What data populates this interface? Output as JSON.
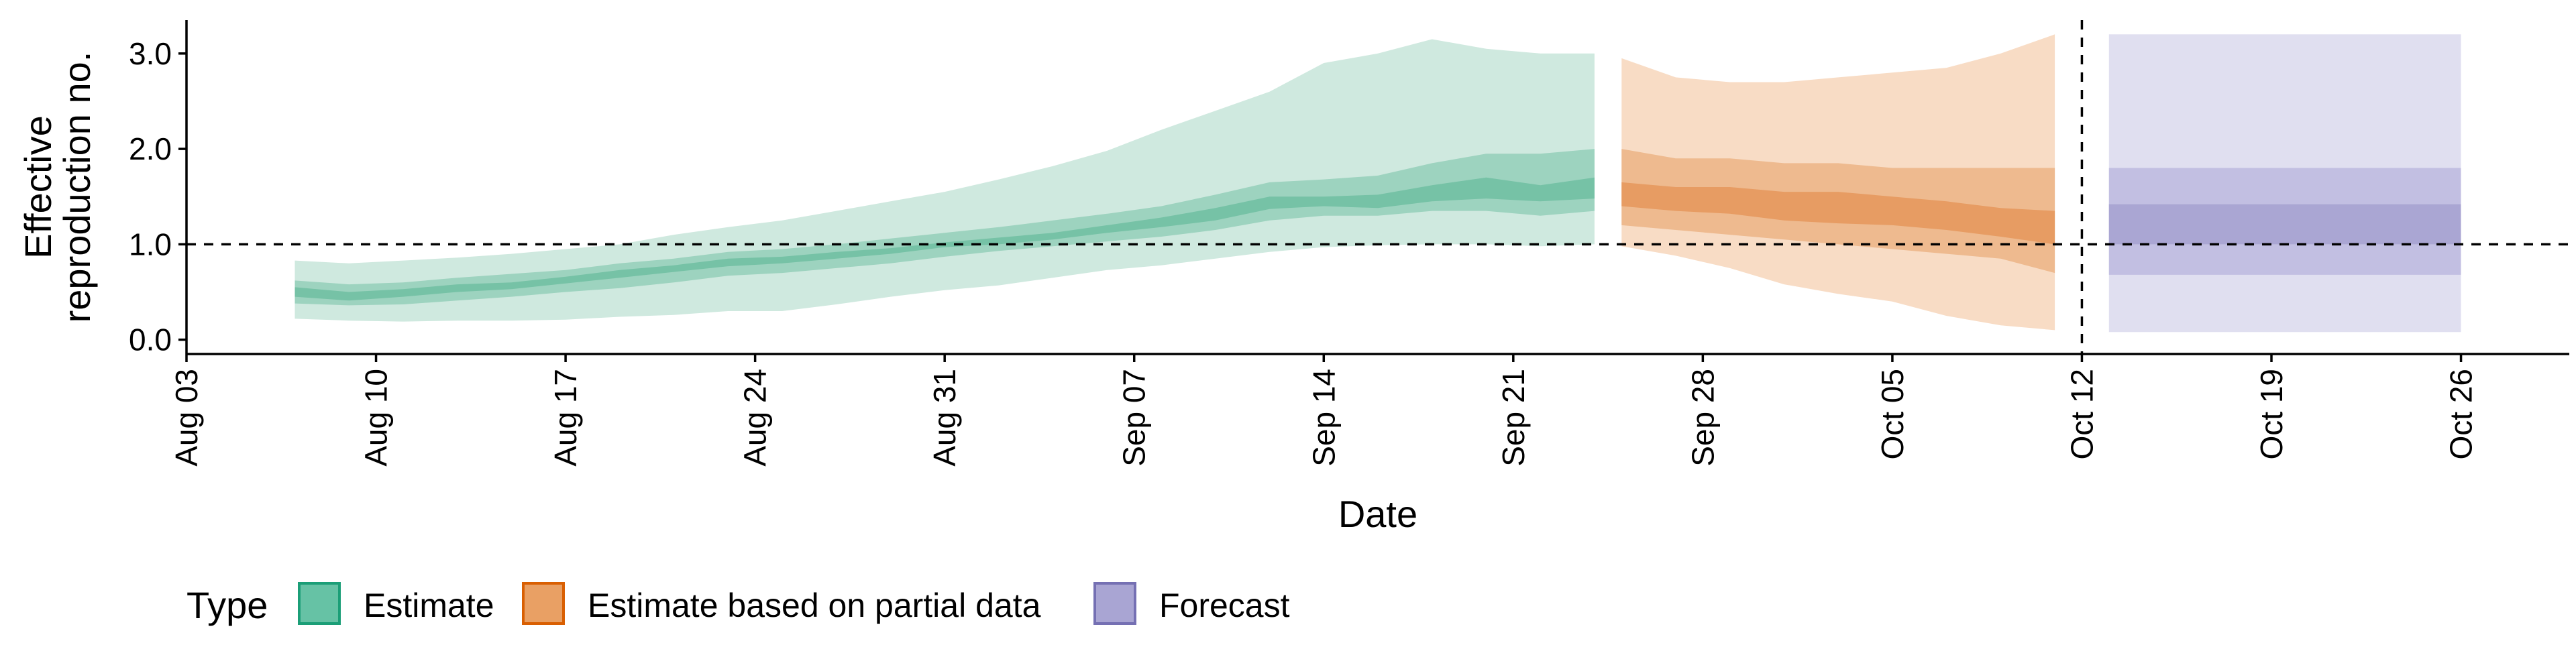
{
  "chart_data": {
    "type": "area",
    "title": "",
    "xlabel": "Date",
    "ylabel_lines": [
      "Effective",
      "reproduction no."
    ],
    "xlim": [
      "2020-08-03",
      "2020-10-30"
    ],
    "ylim": [
      -0.15,
      3.35
    ],
    "x_ticks": [
      {
        "date": "2020-08-03",
        "label": "Aug 03"
      },
      {
        "date": "2020-08-10",
        "label": "Aug 10"
      },
      {
        "date": "2020-08-17",
        "label": "Aug 17"
      },
      {
        "date": "2020-08-24",
        "label": "Aug 24"
      },
      {
        "date": "2020-08-31",
        "label": "Aug 31"
      },
      {
        "date": "2020-09-07",
        "label": "Sep 07"
      },
      {
        "date": "2020-09-14",
        "label": "Sep 14"
      },
      {
        "date": "2020-09-21",
        "label": "Sep 21"
      },
      {
        "date": "2020-09-28",
        "label": "Sep 28"
      },
      {
        "date": "2020-10-05",
        "label": "Oct 05"
      },
      {
        "date": "2020-10-12",
        "label": "Oct 12"
      },
      {
        "date": "2020-10-19",
        "label": "Oct 19"
      },
      {
        "date": "2020-10-26",
        "label": "Oct 26"
      }
    ],
    "y_ticks": [
      {
        "value": 0,
        "label": "0.0"
      },
      {
        "value": 1,
        "label": "1.0"
      },
      {
        "value": 2,
        "label": "2.0"
      },
      {
        "value": 3,
        "label": "3.0"
      }
    ],
    "reference_lines": {
      "horizontal_y": 1.0,
      "vertical_x": "2020-10-12"
    },
    "legend": {
      "title": "Type",
      "position": "bottom-left",
      "items": [
        {
          "label": "Estimate",
          "fill": "#66c2a5",
          "stroke": "#1b9e77"
        },
        {
          "label": "Estimate based on partial data",
          "fill": "#e9a064",
          "stroke": "#d95f02"
        },
        {
          "label": "Forecast",
          "fill": "#a9a5d3",
          "stroke": "#7570b3"
        }
      ]
    },
    "series": [
      {
        "type_label": "Estimate",
        "colors": {
          "outer": "#cfe9df",
          "mid": "#9dd3bf",
          "inner": "#76c2a6"
        },
        "x": [
          "2020-08-07",
          "2020-08-09",
          "2020-08-11",
          "2020-08-13",
          "2020-08-15",
          "2020-08-17",
          "2020-08-19",
          "2020-08-21",
          "2020-08-23",
          "2020-08-25",
          "2020-08-27",
          "2020-08-29",
          "2020-08-31",
          "2020-09-02",
          "2020-09-04",
          "2020-09-06",
          "2020-09-08",
          "2020-09-10",
          "2020-09-12",
          "2020-09-14",
          "2020-09-16",
          "2020-09-18",
          "2020-09-20",
          "2020-09-22",
          "2020-09-24"
        ],
        "lower90": [
          0.22,
          0.2,
          0.19,
          0.2,
          0.2,
          0.21,
          0.24,
          0.26,
          0.3,
          0.3,
          0.37,
          0.45,
          0.52,
          0.57,
          0.65,
          0.73,
          0.78,
          0.85,
          0.92,
          0.97,
          0.99,
          1.0,
          1.0,
          0.98,
          1.0
        ],
        "lower50": [
          0.38,
          0.36,
          0.37,
          0.41,
          0.45,
          0.5,
          0.54,
          0.6,
          0.67,
          0.7,
          0.75,
          0.8,
          0.87,
          0.93,
          0.98,
          1.03,
          1.08,
          1.15,
          1.25,
          1.3,
          1.3,
          1.35,
          1.35,
          1.3,
          1.35
        ],
        "lower20": [
          0.45,
          0.41,
          0.45,
          0.5,
          0.53,
          0.59,
          0.65,
          0.71,
          0.77,
          0.8,
          0.85,
          0.9,
          0.97,
          1.0,
          1.05,
          1.12,
          1.18,
          1.25,
          1.37,
          1.4,
          1.38,
          1.45,
          1.48,
          1.45,
          1.48
        ],
        "upper20": [
          0.55,
          0.5,
          0.53,
          0.58,
          0.6,
          0.66,
          0.73,
          0.78,
          0.85,
          0.87,
          0.92,
          0.96,
          1.02,
          1.07,
          1.12,
          1.2,
          1.28,
          1.38,
          1.5,
          1.5,
          1.52,
          1.62,
          1.7,
          1.62,
          1.7
        ],
        "upper50": [
          0.62,
          0.58,
          0.6,
          0.65,
          0.69,
          0.73,
          0.8,
          0.85,
          0.92,
          0.95,
          1.0,
          1.06,
          1.12,
          1.18,
          1.25,
          1.32,
          1.4,
          1.52,
          1.65,
          1.68,
          1.72,
          1.85,
          1.95,
          1.95,
          2.0
        ],
        "upper90": [
          0.83,
          0.8,
          0.83,
          0.86,
          0.9,
          0.95,
          1.0,
          1.1,
          1.18,
          1.25,
          1.35,
          1.45,
          1.55,
          1.68,
          1.82,
          1.98,
          2.2,
          2.4,
          2.6,
          2.9,
          3.0,
          3.15,
          3.05,
          3.0,
          3.0
        ]
      },
      {
        "type_label": "Estimate based on partial data",
        "colors": {
          "outer": "#f8dcc5",
          "mid": "#eeba8f",
          "inner": "#e79c63"
        },
        "x": [
          "2020-09-25",
          "2020-09-27",
          "2020-09-29",
          "2020-10-01",
          "2020-10-03",
          "2020-10-05",
          "2020-10-07",
          "2020-10-09",
          "2020-10-11"
        ],
        "lower90": [
          0.98,
          0.88,
          0.75,
          0.58,
          0.48,
          0.4,
          0.25,
          0.15,
          0.1
        ],
        "lower50": [
          1.2,
          1.15,
          1.1,
          1.05,
          1.0,
          0.95,
          0.9,
          0.85,
          0.7
        ],
        "lower20": [
          1.4,
          1.35,
          1.32,
          1.25,
          1.22,
          1.2,
          1.15,
          1.08,
          1.0
        ],
        "upper20": [
          1.65,
          1.6,
          1.6,
          1.55,
          1.55,
          1.5,
          1.45,
          1.38,
          1.35
        ],
        "upper50": [
          2.0,
          1.9,
          1.9,
          1.85,
          1.85,
          1.8,
          1.8,
          1.8,
          1.8
        ],
        "upper90": [
          2.95,
          2.75,
          2.7,
          2.7,
          2.75,
          2.8,
          2.85,
          3.0,
          3.2
        ]
      },
      {
        "type_label": "Forecast",
        "colors": {
          "outer": "#e0dff0",
          "mid": "#c2bfe2",
          "inner": "#aaa6d3"
        },
        "x": [
          "2020-10-13",
          "2020-10-26"
        ],
        "lower90": [
          0.08,
          0.08
        ],
        "lower50": [
          0.68,
          0.68
        ],
        "lower20": [
          1.0,
          1.0
        ],
        "upper20": [
          1.42,
          1.42
        ],
        "upper50": [
          1.8,
          1.8
        ],
        "upper90": [
          3.2,
          3.2
        ]
      }
    ]
  }
}
